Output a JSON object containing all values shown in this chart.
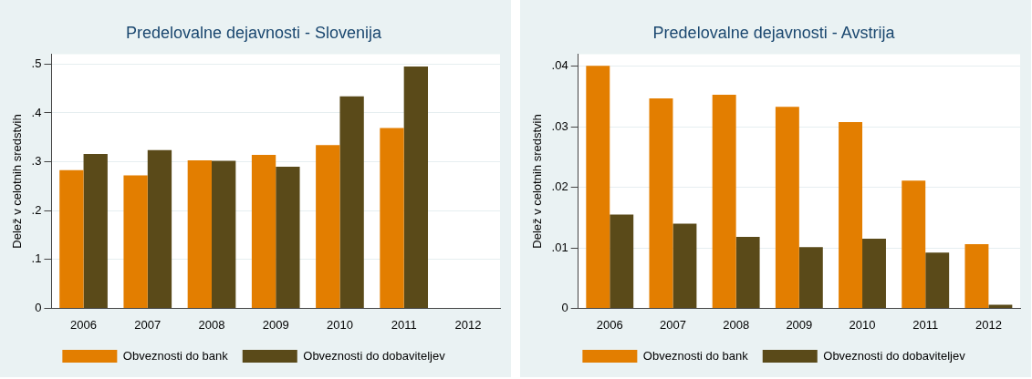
{
  "chart_data": [
    {
      "type": "bar",
      "title": "Predelovalne dejavnosti - Slovenija",
      "ylabel": "Delež v celotnih sredstvih",
      "categories": [
        "2006",
        "2007",
        "2008",
        "2009",
        "2010",
        "2011",
        "2012"
      ],
      "series": [
        {
          "name": "Obveznosti do bank",
          "color": "#e37e00",
          "values": [
            0.283,
            0.272,
            0.303,
            0.314,
            0.334,
            0.369,
            null
          ]
        },
        {
          "name": "Obveznosti do dobaviteljev",
          "color": "#5a4a19",
          "values": [
            0.316,
            0.324,
            0.302,
            0.29,
            0.434,
            0.495,
            null
          ]
        }
      ],
      "ylim": [
        0,
        0.52
      ],
      "yticks": [
        0,
        {
          "value": 0.1,
          "label": ".1"
        },
        {
          "value": 0.2,
          "label": ".2"
        },
        {
          "value": 0.3,
          "label": ".3"
        },
        {
          "value": 0.4,
          "label": ".4"
        },
        {
          "value": 0.5,
          "label": ".5"
        }
      ],
      "grid": "y",
      "legend": "bottom"
    },
    {
      "type": "bar",
      "title": "Predelovalne dejavnosti - Avstrija",
      "ylabel": "Delež v celotnih sredstvih",
      "categories": [
        "2006",
        "2007",
        "2008",
        "2009",
        "2010",
        "2011",
        "2012"
      ],
      "series": [
        {
          "name": "Obveznosti do bank",
          "color": "#e37e00",
          "values": [
            0.0401,
            0.0347,
            0.0353,
            0.0333,
            0.0308,
            0.0211,
            0.0106
          ]
        },
        {
          "name": "Obveznosti do dobaviteljev",
          "color": "#5a4a19",
          "values": [
            0.0155,
            0.014,
            0.0118,
            0.0101,
            0.0115,
            0.0092,
            0.0006
          ]
        }
      ],
      "ylim": [
        0,
        0.042
      ],
      "yticks": [
        0,
        {
          "value": 0.01,
          "label": ".01"
        },
        {
          "value": 0.02,
          "label": ".02"
        },
        {
          "value": 0.03,
          "label": ".03"
        },
        {
          "value": 0.04,
          "label": ".04"
        }
      ],
      "grid": "y",
      "legend": "bottom"
    }
  ]
}
